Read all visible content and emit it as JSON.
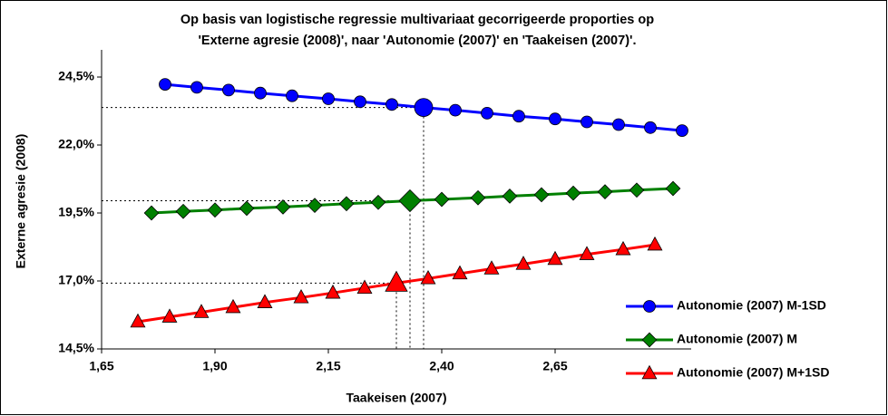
{
  "chart_data": {
    "type": "line",
    "title": [
      "Op basis van logistische regressie multivariaat gecorrigeerde proporties op",
      "'Externe agresie (2008)', naar 'Autonomie (2007)' en 'Taakeisen (2007)'."
    ],
    "x_label": "Taakeisen (2007)",
    "y_label": "Externe agresie (2008)",
    "xlim": [
      1.65,
      2.95
    ],
    "ylim": [
      14.5,
      25.5
    ],
    "xticks": [
      {
        "value": 1.65,
        "label": "1,65"
      },
      {
        "value": 1.9,
        "label": "1,90"
      },
      {
        "value": 2.15,
        "label": "2,15"
      },
      {
        "value": 2.4,
        "label": "2,40"
      },
      {
        "value": 2.65,
        "label": "2,65"
      }
    ],
    "yticks": [
      {
        "value": 14.5,
        "label": "14,5%"
      },
      {
        "value": 17,
        "label": "17,0%"
      },
      {
        "value": 19.5,
        "label": "19,5%"
      },
      {
        "value": 22,
        "label": "22,0%"
      },
      {
        "value": 24.5,
        "label": "24,5%"
      }
    ],
    "series": [
      {
        "name": "Autonomie (2007) M-1SD",
        "color": "#0000ff",
        "marker": "circle",
        "highlight": 8,
        "x": [
          1.79,
          1.86,
          1.93,
          2.0,
          2.07,
          2.15,
          2.22,
          2.29,
          2.36,
          2.43,
          2.5,
          2.57,
          2.65,
          2.72,
          2.79,
          2.86,
          2.93
        ],
        "values": [
          24.23,
          24.12,
          24.02,
          23.91,
          23.81,
          23.7,
          23.59,
          23.49,
          23.38,
          23.28,
          23.17,
          23.06,
          22.96,
          22.85,
          22.75,
          22.64,
          22.53
        ]
      },
      {
        "name": "Autonomie (2007) M",
        "color": "#008000",
        "marker": "diamond",
        "highlight": 8,
        "x": [
          1.76,
          1.83,
          1.9,
          1.97,
          2.05,
          2.12,
          2.19,
          2.26,
          2.33,
          2.4,
          2.48,
          2.55,
          2.62,
          2.69,
          2.76,
          2.83,
          2.91
        ],
        "values": [
          19.5,
          19.56,
          19.61,
          19.67,
          19.72,
          19.78,
          19.84,
          19.89,
          19.95,
          20.0,
          20.06,
          20.12,
          20.17,
          20.23,
          20.28,
          20.34,
          20.4
        ]
      },
      {
        "name": "Autonomie (2007) M+1SD",
        "color": "#ff0000",
        "marker": "triangle",
        "highlight": 8,
        "x": [
          1.73,
          1.8,
          1.87,
          1.94,
          2.01,
          2.09,
          2.16,
          2.23,
          2.3,
          2.37,
          2.44,
          2.51,
          2.58,
          2.65,
          2.72,
          2.8,
          2.87
        ],
        "values": [
          15.5,
          15.68,
          15.85,
          16.03,
          16.21,
          16.39,
          16.56,
          16.74,
          16.92,
          17.09,
          17.27,
          17.45,
          17.62,
          17.8,
          17.98,
          18.16,
          18.33
        ]
      }
    ]
  }
}
